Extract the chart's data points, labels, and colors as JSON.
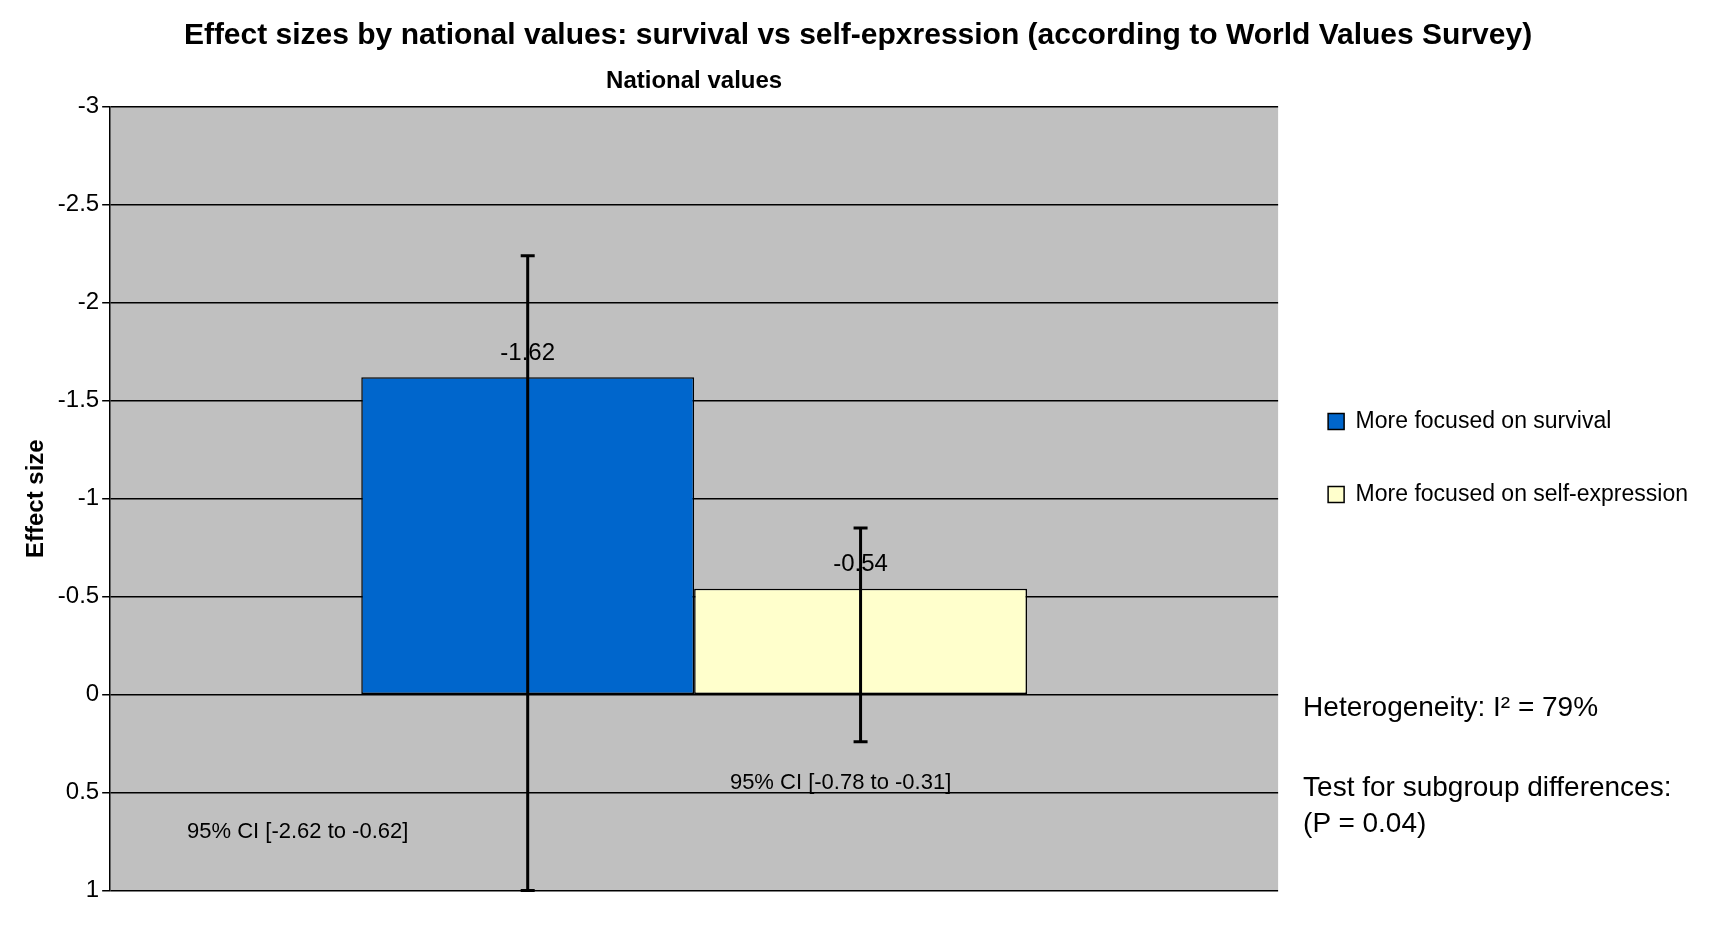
{
  "chart_data": {
    "type": "bar",
    "title": "Effect sizes by national values: survival vs self-epxression (according to World Values Survey)",
    "ylabel": "Effect size",
    "categories": [
      "National values"
    ],
    "series": [
      {
        "name": "More focused on survival",
        "color": "#0066cc",
        "values": [
          -1.62
        ],
        "errors": [
          [
            -2.24,
            1
          ]
        ]
      },
      {
        "name": "More focused on self-expression",
        "color": "#ffffcc",
        "values": [
          -0.54
        ],
        "errors": [
          [
            -0.85,
            0.24
          ]
        ]
      }
    ],
    "ylim": [
      1,
      -3
    ],
    "yticks": [
      -3,
      -2.5,
      -2,
      -1.5,
      -1,
      -0.5,
      0,
      0.5,
      1
    ],
    "grid": "y",
    "legend": "right",
    "data_labels": true,
    "annotations": [
      "95% CI [-2.62 to -0.62]",
      "95% CI [-0.78 to -0.31]",
      "Heterogeneity: I² = 79%",
      "Test for subgroup differences: (P = 0.04)"
    ]
  }
}
